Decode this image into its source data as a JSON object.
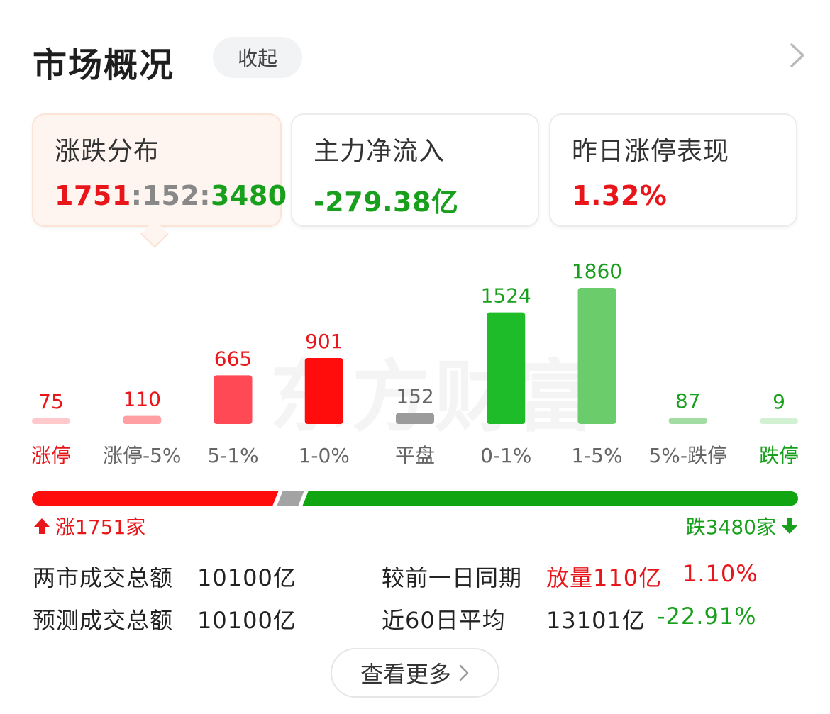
{
  "header": {
    "title": "市场概况",
    "collapse_label": "收起"
  },
  "cards": [
    {
      "label": "涨跌分布",
      "value_parts": [
        {
          "text": "1751",
          "color": "#e8161a"
        },
        {
          "text": ":152:",
          "color": "#888888"
        },
        {
          "text": "3480",
          "color": "#18a01c"
        }
      ]
    },
    {
      "label": "主力净流入",
      "value": "-279.38亿",
      "color": "#18a01c"
    },
    {
      "label": "昨日涨停表现",
      "value": "1.32%",
      "color": "#e8161a"
    }
  ],
  "watermark": "东方财富",
  "chart_data": {
    "type": "bar",
    "categories": [
      "涨停",
      "涨停-5%",
      "5-1%",
      "1-0%",
      "平盘",
      "0-1%",
      "1-5%",
      "5%-跌停",
      "跌停"
    ],
    "values": [
      75,
      110,
      665,
      901,
      152,
      1524,
      1860,
      87,
      9
    ],
    "bar_colors": [
      "#ffc9cc",
      "#ff9ea3",
      "#ff4a55",
      "#ff0d0d",
      "#9b9b9b",
      "#1fbc2a",
      "#6bcc6b",
      "#a3dca3",
      "#d2f0d2"
    ],
    "value_colors": [
      "#e8161a",
      "#e8161a",
      "#e8161a",
      "#e8161a",
      "#666666",
      "#18a01c",
      "#18a01c",
      "#18a01c",
      "#18a01c"
    ],
    "label_colors": [
      "#e8161a",
      "#666666",
      "#666666",
      "#666666",
      "#666666",
      "#666666",
      "#666666",
      "#666666",
      "#18a01c"
    ]
  },
  "distribution": {
    "up": 1751,
    "flat": 152,
    "down": 3480,
    "up_color": "#ff0d0d",
    "flat_color": "#a3a3a3",
    "down_color": "#11a512",
    "up_text": "涨1751家",
    "down_text": "跌3480家"
  },
  "stats": {
    "total_label": "两市成交总额",
    "total_value": "10100亿",
    "compare_label": "较前一日同期",
    "compare_tag": "放量110亿",
    "compare_pct": "1.10%",
    "forecast_label": "预测成交总额",
    "forecast_value": "10100亿",
    "avg_label": "近60日平均",
    "avg_value": "13101亿",
    "avg_pct": "-22.91%"
  },
  "more_label": "查看更多"
}
